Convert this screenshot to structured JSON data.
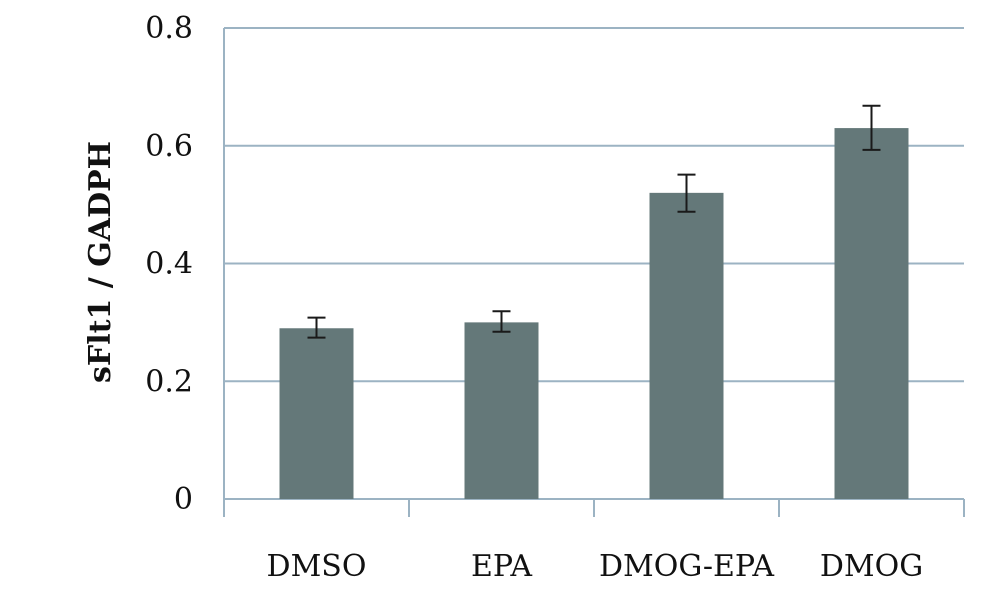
{
  "chart_data": {
    "type": "bar",
    "ylabel": "sFlt1 / GADPH",
    "xlabel": "",
    "categories": [
      "DMSO",
      "EPA",
      "DMOG-EPA",
      "DMOG"
    ],
    "values": [
      0.29,
      0.3,
      0.52,
      0.63
    ],
    "error_plus": [
      0.018,
      0.019,
      0.031,
      0.038
    ],
    "error_minus": [
      0.016,
      0.016,
      0.032,
      0.037
    ],
    "ylim": [
      0,
      0.8
    ],
    "yticks": [
      0,
      0.2,
      0.4,
      0.6,
      0.8
    ],
    "ytick_labels": [
      "0",
      "0.2",
      "0.4",
      "0.6",
      "0.8"
    ],
    "grid": true,
    "legend": "none",
    "colors": {
      "bar": "#647879",
      "grid": "#9cb3c3",
      "error": "#1a1a1a"
    }
  }
}
